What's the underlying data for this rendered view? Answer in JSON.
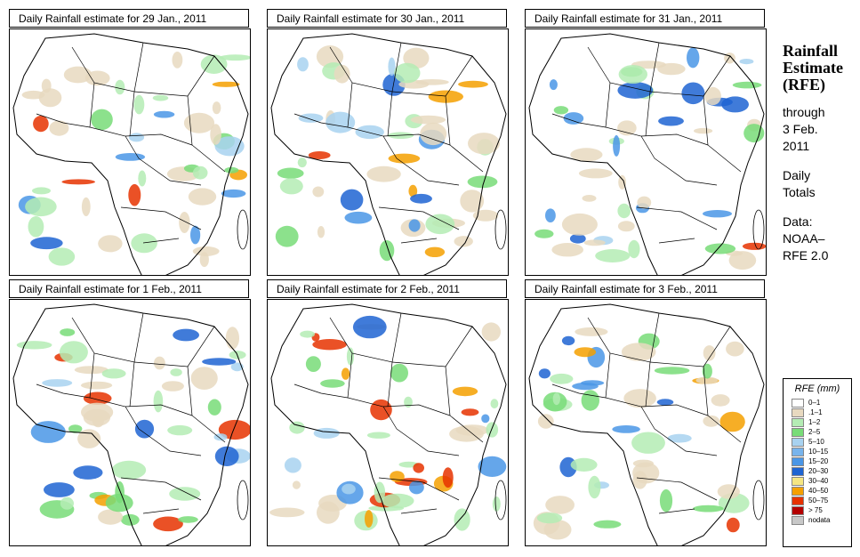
{
  "panels": [
    {
      "title": "Daily Rainfall estimate for  29 Jan., 2011"
    },
    {
      "title": "Daily Rainfall estimate for  30 Jan., 2011"
    },
    {
      "title": "Daily Rainfall estimate for  31 Jan., 2011"
    },
    {
      "title": "Daily Rainfall estimate for  1 Feb., 2011"
    },
    {
      "title": "Daily Rainfall estimate for  2 Feb., 2011"
    },
    {
      "title": "Daily Rainfall estimate for  3 Feb., 2011"
    }
  ],
  "side": {
    "title_line1": "Rainfall",
    "title_line2": "Estimate",
    "title_line3": "(RFE)",
    "through": "through",
    "date_line1": "3 Feb.",
    "date_line2": "2011",
    "daily_line1": "Daily",
    "daily_line2": "Totals",
    "data_line1": "Data:",
    "data_line2": "NOAA–",
    "data_line3": "RFE 2.0"
  },
  "legend": {
    "title": "RFE (mm)",
    "items": [
      {
        "label": "0–1",
        "color": "#ffffff"
      },
      {
        "label": ".1–1",
        "color": "#e8d9c0"
      },
      {
        "label": "1–2",
        "color": "#b4ecb4"
      },
      {
        "label": "2–5",
        "color": "#78dc78"
      },
      {
        "label": "5–10",
        "color": "#a8d2f0"
      },
      {
        "label": "10–15",
        "color": "#78b4ec"
      },
      {
        "label": "15–20",
        "color": "#4a96e6"
      },
      {
        "label": "20–30",
        "color": "#1e64d2"
      },
      {
        "label": "30–40",
        "color": "#f5e682"
      },
      {
        "label": "40–50",
        "color": "#f5a000"
      },
      {
        "label": "50–75",
        "color": "#e63200"
      },
      {
        "label": "> 75",
        "color": "#b40000"
      },
      {
        "label": "nodata",
        "color": "#c8c8c8"
      }
    ]
  }
}
